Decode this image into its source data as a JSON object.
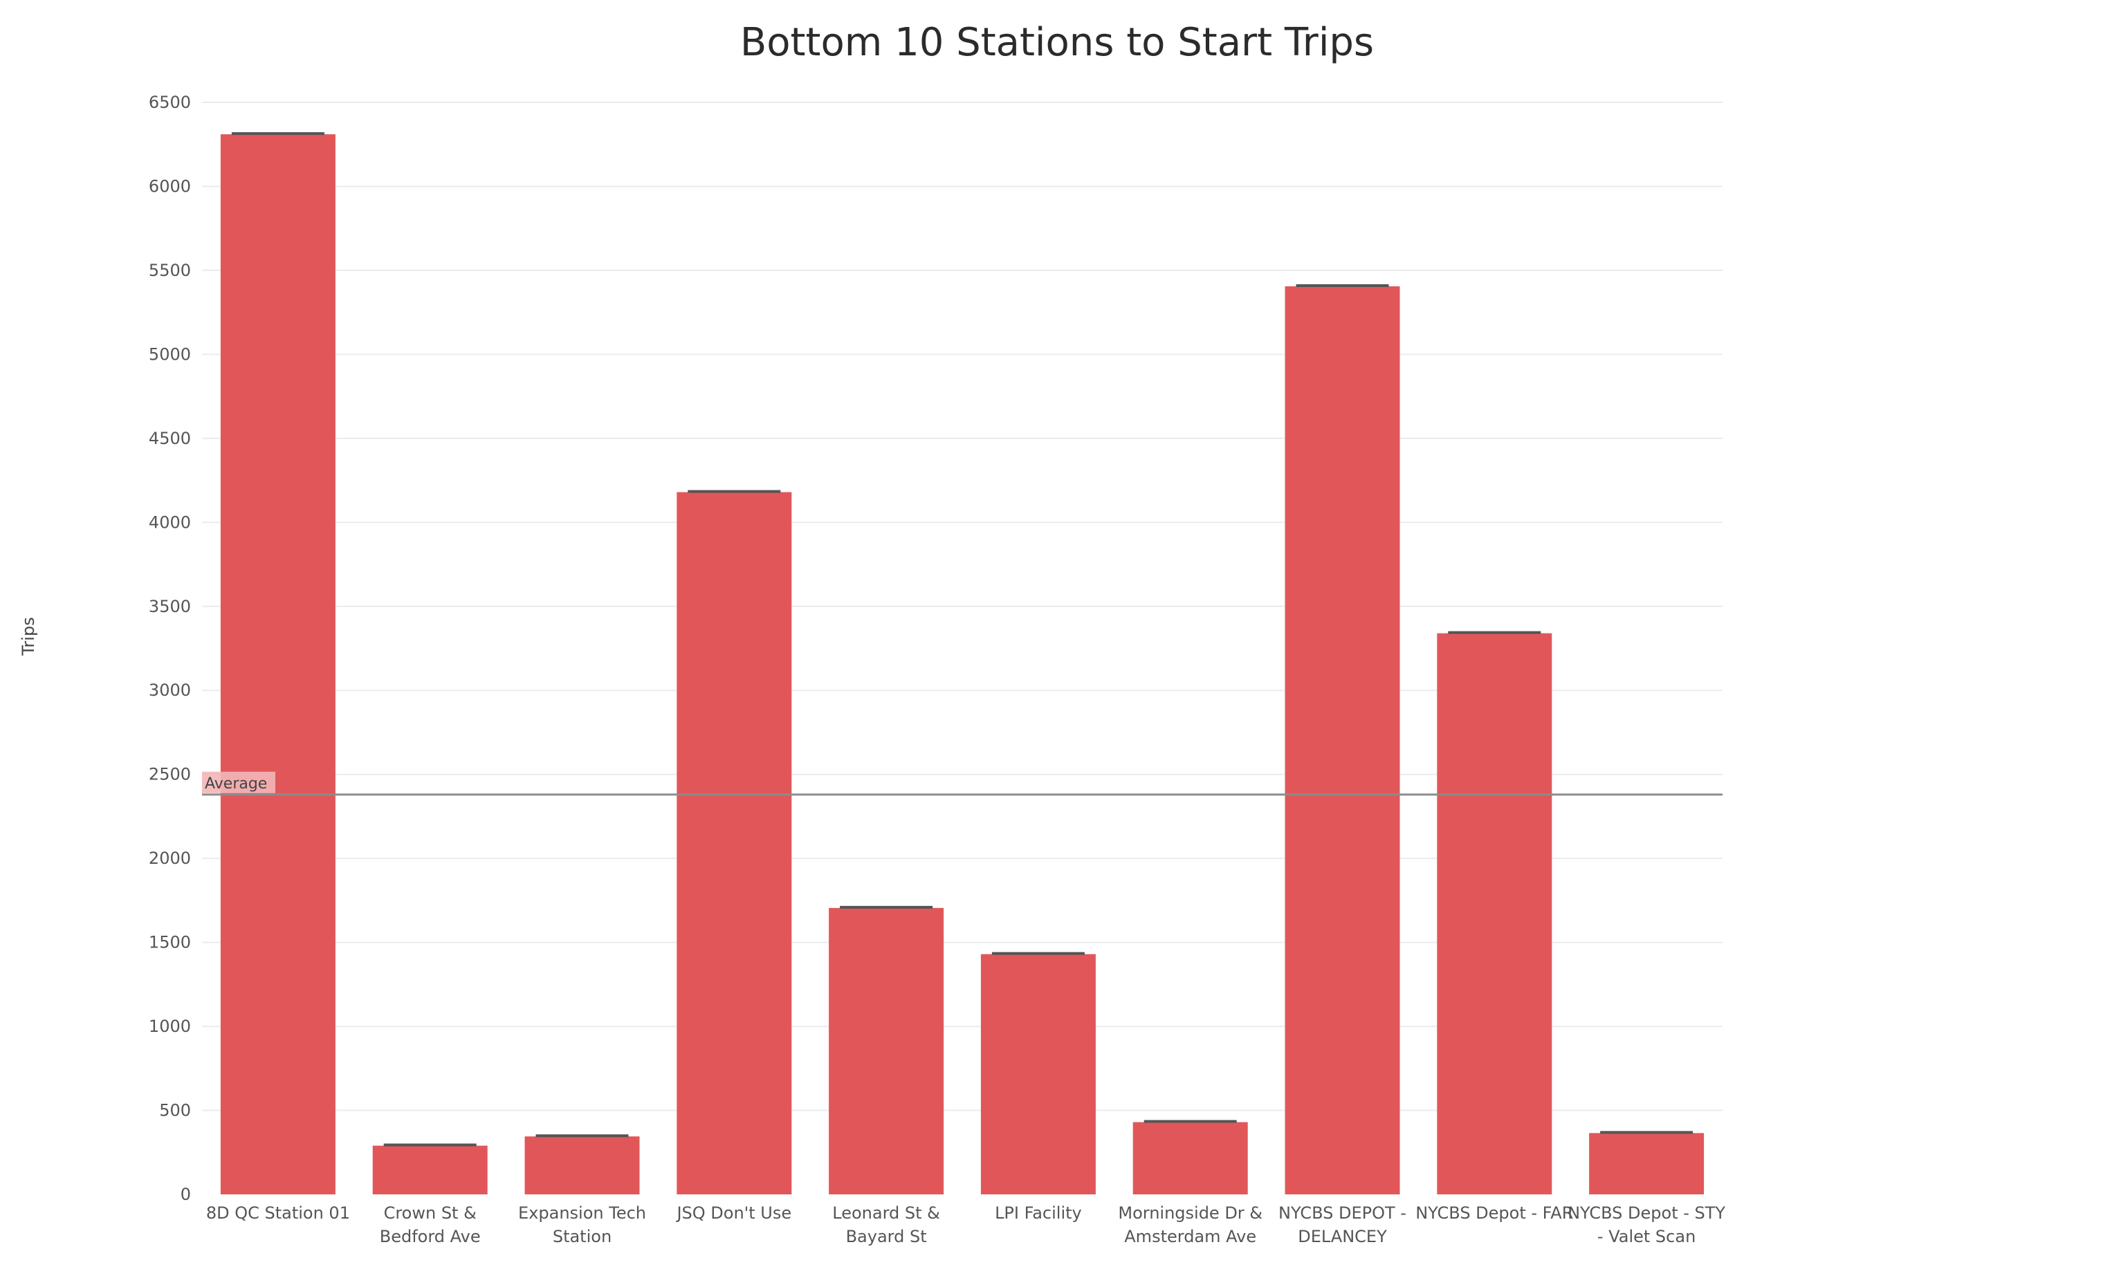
{
  "chart_data": {
    "type": "bar",
    "title": "Bottom 10 Stations to Start Trips",
    "xlabel": "",
    "ylabel": "Trips",
    "ylim": [
      0,
      6500
    ],
    "yticks": [
      0,
      500,
      1000,
      1500,
      2000,
      2500,
      3000,
      3500,
      4000,
      4500,
      5000,
      5500,
      6000,
      6500
    ],
    "grid": true,
    "categories": [
      [
        "8D QC Station 01"
      ],
      [
        "Crown St &",
        "Bedford Ave"
      ],
      [
        "Expansion Tech",
        "Station"
      ],
      [
        "JSQ Don't Use"
      ],
      [
        "Leonard St &",
        "Bayard St"
      ],
      [
        "LPI Facility"
      ],
      [
        "Morningside Dr &",
        "Amsterdam Ave"
      ],
      [
        "NYCBS DEPOT -",
        "DELANCEY"
      ],
      [
        "NYCBS Depot - FAR"
      ],
      [
        "NYCBS Depot - STY",
        "- Valet Scan"
      ]
    ],
    "values": [
      6310,
      290,
      345,
      4180,
      1705,
      1430,
      430,
      5405,
      3340,
      365
    ],
    "reference_line": {
      "label": "Average",
      "value": 2380
    },
    "colors": {
      "bar": "#e15759",
      "bar_cap": "#555555",
      "grid": "#ebebeb",
      "reference_line": "#8c8c8c",
      "reference_label_bg": "#f2b6b7"
    }
  }
}
